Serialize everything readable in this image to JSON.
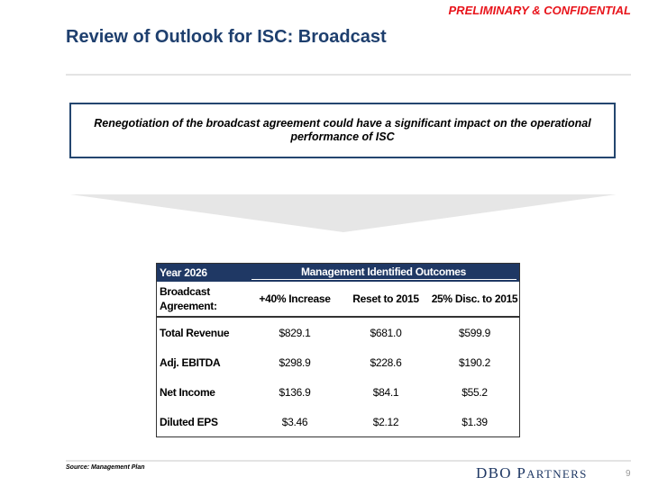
{
  "header": {
    "confidential": "PRELIMINARY & CONFIDENTIAL",
    "title": "Review of Outlook for ISC: Broadcast"
  },
  "callout": {
    "text": "Renegotiation of the broadcast agreement could have a significant impact on the operational performance of ISC"
  },
  "table": {
    "year_label": "Year 2026",
    "group_header": "Management Identified Outcomes",
    "row_header": "Broadcast Agreement:",
    "columns": [
      "+40% Increase",
      "Reset to 2015",
      "25% Disc. to 2015"
    ],
    "rows": [
      {
        "label": "Total Revenue",
        "values": [
          "$829.1",
          "$681.0",
          "$599.9"
        ]
      },
      {
        "label": "Adj. EBITDA",
        "values": [
          "$298.9",
          "$228.6",
          "$190.2"
        ]
      },
      {
        "label": "Net Income",
        "values": [
          "$136.9",
          "$84.1",
          "$55.2"
        ]
      },
      {
        "label": "Diluted EPS",
        "values": [
          "$3.46",
          "$2.12",
          "$1.39"
        ]
      }
    ]
  },
  "footer": {
    "source": "Source: Management Plan",
    "logo_first": "DBO P",
    "logo_rest": "ARTNERS",
    "page_number": "9"
  },
  "colors": {
    "title": "#1e3f6e",
    "confidential": "#e8141b",
    "table_header": "#1f3864",
    "arrow": "#e6e6e6"
  }
}
